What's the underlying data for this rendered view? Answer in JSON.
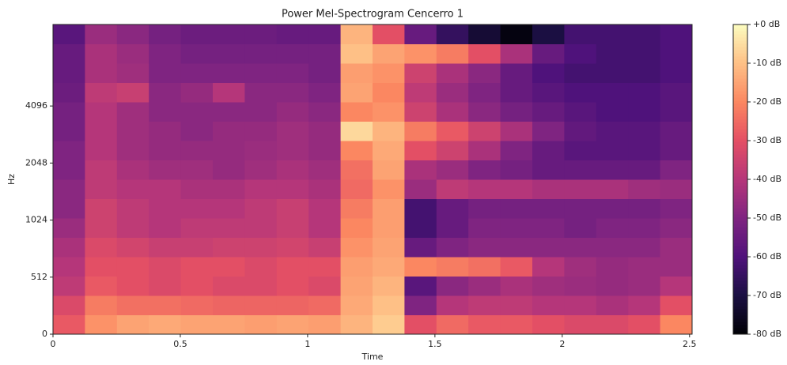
{
  "chart_data": {
    "type": "heatmap",
    "title": "Power Mel-Spectrogram Cencerro 1",
    "xlabel": "Time",
    "ylabel": "Hz",
    "colormap": "magma",
    "xlim": [
      0,
      2.51
    ],
    "xticks": [
      0,
      0.5,
      1,
      1.5,
      2,
      2.5
    ],
    "ylim": [
      0,
      11025
    ],
    "yscale": "symlog",
    "linthresh": 512,
    "base": 2,
    "yticks": [
      0,
      512,
      1024,
      2048,
      4096
    ],
    "clim": [
      -80,
      0
    ],
    "cticks": [
      {
        "value": 0,
        "label": "+0 dB"
      },
      {
        "value": -10,
        "label": "-10 dB"
      },
      {
        "value": -20,
        "label": "-20 dB"
      },
      {
        "value": -30,
        "label": "-30 dB"
      },
      {
        "value": -40,
        "label": "-40 dB"
      },
      {
        "value": -50,
        "label": "-50 dB"
      },
      {
        "value": -60,
        "label": "-60 dB"
      },
      {
        "value": -70,
        "label": "-70 dB"
      },
      {
        "value": -80,
        "label": "-80 dB"
      }
    ],
    "z": [
      [
        -28,
        -18,
        -15,
        -14,
        -15,
        -15,
        -16,
        -15,
        -16,
        -12,
        -8,
        -30,
        -25,
        -28,
        -28,
        -30,
        -32,
        -32,
        -30,
        -20
      ],
      [
        -32,
        -22,
        -24,
        -24,
        -25,
        -26,
        -26,
        -26,
        -25,
        -14,
        -10,
        -50,
        -40,
        -38,
        -38,
        -40,
        -40,
        -42,
        -40,
        -30
      ],
      [
        -38,
        -28,
        -30,
        -32,
        -30,
        -32,
        -32,
        -30,
        -32,
        -15,
        -12,
        -58,
        -48,
        -45,
        -42,
        -44,
        -45,
        -46,
        -45,
        -40
      ],
      [
        -40,
        -30,
        -30,
        -32,
        -30,
        -30,
        -32,
        -30,
        -30,
        -16,
        -14,
        -20,
        -22,
        -24,
        -28,
        -40,
        -44,
        -46,
        -45,
        -45
      ],
      [
        -42,
        -32,
        -34,
        -36,
        -36,
        -35,
        -35,
        -34,
        -36,
        -18,
        -15,
        -55,
        -50,
        -48,
        -48,
        -48,
        -48,
        -48,
        -48,
        -45
      ],
      [
        -45,
        -35,
        -38,
        -40,
        -38,
        -38,
        -38,
        -36,
        -40,
        -20,
        -16,
        -62,
        -55,
        -50,
        -50,
        -50,
        -52,
        -50,
        -50,
        -48
      ],
      [
        -48,
        -35,
        -38,
        -40,
        -40,
        -40,
        -38,
        -36,
        -40,
        -22,
        -16,
        -62,
        -55,
        -52,
        -52,
        -52,
        -52,
        -52,
        -52,
        -50
      ],
      [
        -48,
        -38,
        -40,
        -40,
        -42,
        -42,
        -40,
        -40,
        -42,
        -25,
        -18,
        -45,
        -38,
        -40,
        -40,
        -42,
        -42,
        -42,
        -44,
        -45
      ],
      [
        -50,
        -38,
        -42,
        -44,
        -44,
        -46,
        -44,
        -42,
        -44,
        -24,
        -15,
        -42,
        -45,
        -50,
        -52,
        -55,
        -55,
        -55,
        -55,
        -50
      ],
      [
        -50,
        -40,
        -44,
        -46,
        -46,
        -46,
        -45,
        -44,
        -46,
        -20,
        -14,
        -30,
        -35,
        -42,
        -50,
        -55,
        -58,
        -58,
        -58,
        -55
      ],
      [
        -52,
        -40,
        -44,
        -46,
        -48,
        -46,
        -46,
        -44,
        -46,
        -6,
        -12,
        -22,
        -28,
        -35,
        -42,
        -50,
        -56,
        -58,
        -58,
        -55
      ],
      [
        -52,
        -40,
        -44,
        -48,
        -48,
        -48,
        -48,
        -46,
        -48,
        -20,
        -18,
        -35,
        -42,
        -48,
        -52,
        -55,
        -58,
        -60,
        -60,
        -58
      ],
      [
        -54,
        -38,
        -36,
        -48,
        -46,
        -40,
        -48,
        -48,
        -50,
        -15,
        -20,
        -38,
        -45,
        -50,
        -55,
        -58,
        -60,
        -60,
        -60,
        -58
      ],
      [
        -55,
        -42,
        -44,
        -50,
        -50,
        -50,
        -50,
        -50,
        -52,
        -16,
        -18,
        -35,
        -42,
        -48,
        -55,
        -60,
        -62,
        -62,
        -62,
        -60
      ],
      [
        -55,
        -42,
        -45,
        -50,
        -52,
        -52,
        -52,
        -52,
        -52,
        -10,
        -15,
        -18,
        -22,
        -30,
        -42,
        -55,
        -60,
        -62,
        -62,
        -60
      ],
      [
        -58,
        -45,
        -48,
        -52,
        -54,
        -54,
        -54,
        -55,
        -55,
        -12,
        -30,
        -55,
        -65,
        -72,
        -78,
        -70,
        -62,
        -62,
        -62,
        -60
      ]
    ]
  }
}
